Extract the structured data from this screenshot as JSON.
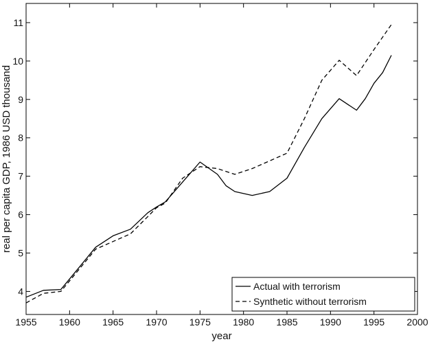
{
  "chart_data": {
    "type": "line",
    "title": "",
    "xlabel": "year",
    "ylabel": "real per capita GDP, 1986 USD thousand",
    "xlim": [
      1955,
      2000
    ],
    "ylim": [
      3.4,
      11.5
    ],
    "xticks": [
      1955,
      1960,
      1965,
      1970,
      1975,
      1980,
      1985,
      1990,
      1995,
      2000
    ],
    "yticks": [
      4,
      5,
      6,
      7,
      8,
      9,
      10,
      11
    ],
    "grid": false,
    "legend_position": "bottom-right",
    "series": [
      {
        "name": "Actual with terrorism",
        "style": "solid",
        "color": "#000000",
        "x": [
          1955,
          1957,
          1959,
          1961,
          1963,
          1965,
          1967,
          1969,
          1970,
          1971,
          1973,
          1975,
          1977,
          1978,
          1979,
          1981,
          1983,
          1985,
          1987,
          1989,
          1991,
          1993,
          1994,
          1995,
          1996,
          1997
        ],
        "y": [
          3.85,
          4.03,
          4.05,
          4.6,
          5.15,
          5.45,
          5.62,
          6.05,
          6.2,
          6.33,
          6.85,
          7.37,
          7.05,
          6.75,
          6.6,
          6.5,
          6.6,
          6.95,
          7.75,
          8.5,
          9.02,
          8.72,
          9.02,
          9.42,
          9.7,
          10.15
        ]
      },
      {
        "name": "Synthetic without terrorism",
        "style": "dashed",
        "color": "#000000",
        "x": [
          1955,
          1957,
          1959,
          1961,
          1963,
          1965,
          1967,
          1969,
          1970,
          1971,
          1973,
          1975,
          1977,
          1979,
          1981,
          1983,
          1985,
          1987,
          1989,
          1991,
          1993,
          1995,
          1997
        ],
        "y": [
          3.7,
          3.95,
          4.0,
          4.55,
          5.1,
          5.3,
          5.5,
          5.95,
          6.18,
          6.3,
          6.95,
          7.25,
          7.2,
          7.05,
          7.2,
          7.4,
          7.6,
          8.5,
          9.5,
          10.02,
          9.62,
          10.3,
          10.95
        ]
      }
    ]
  }
}
